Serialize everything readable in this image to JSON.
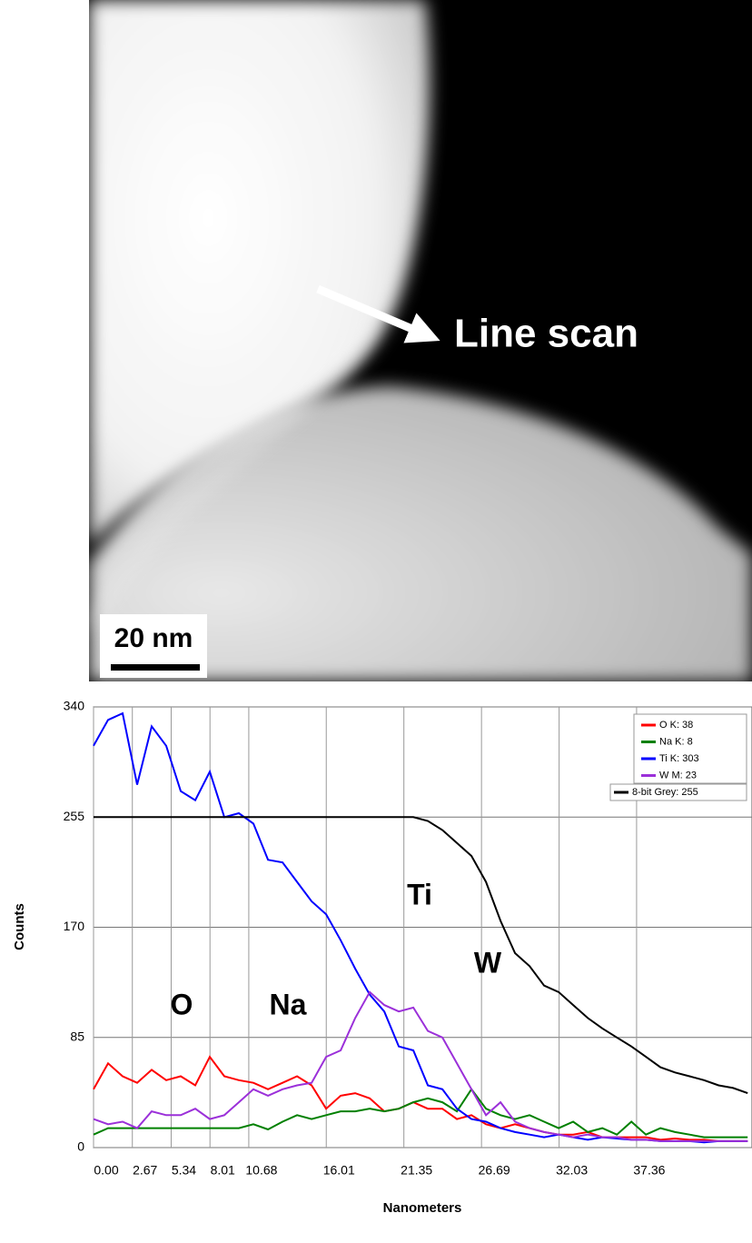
{
  "image": {
    "label": "Line scan",
    "scale_bar": "20 nm"
  },
  "chart_data": {
    "type": "line",
    "x_label": "Nanometers",
    "y_label": "Counts",
    "x": [
      0,
      1,
      2,
      3,
      4,
      5,
      6,
      7,
      8,
      9,
      10,
      11,
      12,
      13,
      14,
      15,
      16,
      17,
      18,
      19,
      20,
      21,
      22,
      23,
      24,
      25,
      26,
      27,
      28,
      29,
      30,
      31,
      32,
      33,
      34,
      35,
      36,
      37,
      38,
      39,
      40,
      41,
      42,
      43,
      44,
      45
    ],
    "series": [
      {
        "name": "O K: 38",
        "color": "#ff0000",
        "values": [
          45,
          65,
          55,
          50,
          60,
          52,
          55,
          48,
          70,
          55,
          52,
          50,
          45,
          50,
          55,
          48,
          30,
          40,
          42,
          38,
          28,
          30,
          35,
          30,
          30,
          22,
          25,
          18,
          15,
          18,
          15,
          12,
          10,
          10,
          12,
          8,
          8,
          8,
          8,
          6,
          7,
          6,
          6,
          5,
          5,
          5
        ]
      },
      {
        "name": "Na K: 8",
        "color": "#008000",
        "values": [
          10,
          15,
          15,
          15,
          15,
          15,
          15,
          15,
          15,
          15,
          15,
          18,
          14,
          20,
          25,
          22,
          25,
          28,
          28,
          30,
          28,
          30,
          35,
          38,
          35,
          28,
          45,
          30,
          25,
          22,
          25,
          20,
          15,
          20,
          12,
          15,
          10,
          20,
          10,
          15,
          12,
          10,
          8,
          8,
          8,
          8
        ]
      },
      {
        "name": "Ti K: 303",
        "color": "#0000ff",
        "values": [
          310,
          330,
          335,
          280,
          325,
          310,
          275,
          268,
          290,
          255,
          258,
          250,
          222,
          220,
          205,
          190,
          180,
          160,
          138,
          118,
          105,
          78,
          75,
          48,
          45,
          30,
          22,
          20,
          15,
          12,
          10,
          8,
          10,
          8,
          6,
          8,
          7,
          6,
          6,
          5,
          5,
          5,
          4,
          5,
          5,
          5
        ]
      },
      {
        "name": "W M: 23",
        "color": "#9b30d9",
        "values": [
          22,
          18,
          20,
          15,
          28,
          25,
          25,
          30,
          22,
          25,
          35,
          45,
          40,
          45,
          48,
          50,
          70,
          75,
          100,
          120,
          110,
          105,
          108,
          90,
          85,
          65,
          45,
          25,
          35,
          20,
          15,
          12,
          10,
          8,
          10,
          8,
          8,
          6,
          6,
          5,
          5,
          5,
          5,
          5,
          5,
          5
        ]
      },
      {
        "name": "8-bit Grey: 255",
        "color": "#000000",
        "values": [
          255,
          255,
          255,
          255,
          255,
          255,
          255,
          255,
          255,
          255,
          255,
          255,
          255,
          255,
          255,
          255,
          255,
          255,
          255,
          255,
          255,
          255,
          255,
          252,
          245,
          235,
          225,
          205,
          175,
          150,
          140,
          125,
          120,
          110,
          100,
          92,
          85,
          78,
          70,
          62,
          58,
          55,
          52,
          48,
          46,
          42
        ]
      }
    ],
    "annotations": [
      "O",
      "Na",
      "Ti",
      "W"
    ],
    "xlim": [
      0,
      45.3
    ],
    "xticks": [
      {
        "value": 0,
        "label": "0.00"
      },
      2.67,
      5.34,
      8.01,
      10.68,
      16.01,
      21.35,
      26.69,
      32.03,
      37.36
    ],
    "ylim": [
      0,
      340
    ],
    "yticks": [
      0,
      85,
      170,
      255,
      340
    ],
    "grid": true,
    "legend": "top-right"
  }
}
